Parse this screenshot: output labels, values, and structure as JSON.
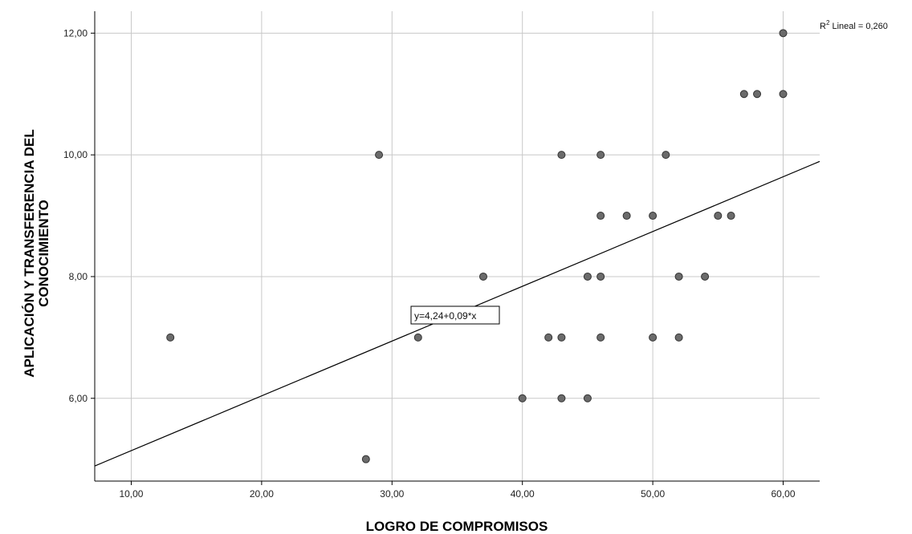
{
  "chart_data": {
    "type": "scatter",
    "xlabel": "LOGRO DE COMPROMISOS",
    "ylabel_line1": "APLICACIÓN Y TRANSFERENCIA DEL",
    "ylabel_line2": "CONOCIMIENTO",
    "xlim": [
      7.2,
      62.8
    ],
    "ylim": [
      4.64,
      12.36
    ],
    "x_ticks": [
      10,
      20,
      30,
      40,
      50,
      60
    ],
    "x_tick_labels": [
      "10,00",
      "20,00",
      "30,00",
      "40,00",
      "50,00",
      "60,00"
    ],
    "y_ticks": [
      6,
      8,
      10,
      12
    ],
    "y_tick_labels": [
      "6,00",
      "8,00",
      "10,00",
      "12,00"
    ],
    "grid": true,
    "points": [
      {
        "x": 13,
        "y": 7
      },
      {
        "x": 28,
        "y": 5
      },
      {
        "x": 29,
        "y": 10
      },
      {
        "x": 32,
        "y": 7
      },
      {
        "x": 37,
        "y": 8
      },
      {
        "x": 40,
        "y": 6
      },
      {
        "x": 42,
        "y": 7
      },
      {
        "x": 43,
        "y": 7
      },
      {
        "x": 43,
        "y": 10
      },
      {
        "x": 43,
        "y": 6
      },
      {
        "x": 45,
        "y": 8
      },
      {
        "x": 45,
        "y": 6
      },
      {
        "x": 46,
        "y": 10
      },
      {
        "x": 46,
        "y": 9
      },
      {
        "x": 46,
        "y": 8
      },
      {
        "x": 46,
        "y": 7
      },
      {
        "x": 48,
        "y": 9
      },
      {
        "x": 50,
        "y": 9
      },
      {
        "x": 50,
        "y": 7
      },
      {
        "x": 51,
        "y": 10
      },
      {
        "x": 52,
        "y": 8
      },
      {
        "x": 52,
        "y": 7
      },
      {
        "x": 54,
        "y": 8
      },
      {
        "x": 55,
        "y": 9
      },
      {
        "x": 56,
        "y": 9
      },
      {
        "x": 57,
        "y": 11
      },
      {
        "x": 58,
        "y": 11
      },
      {
        "x": 60,
        "y": 12
      },
      {
        "x": 60,
        "y": 11
      }
    ],
    "fit_line": {
      "intercept": 4.24,
      "slope": 0.09
    },
    "equation_label": "y=4,24+0,09*x",
    "r2_label_prefix": "R",
    "r2_label_sup": "2",
    "r2_label_suffix": " Lineal = 0,260",
    "colors": {
      "marker_fill": "#6b6b6b",
      "marker_stroke": "#333333",
      "grid": "#c8c8c8",
      "line": "#000000"
    }
  }
}
